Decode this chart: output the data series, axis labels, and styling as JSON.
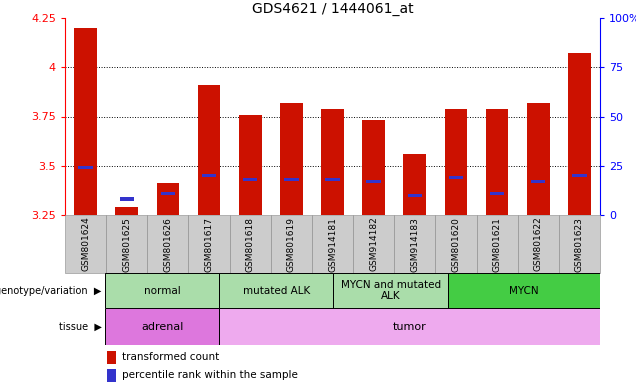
{
  "title": "GDS4621 / 1444061_at",
  "samples": [
    "GSM801624",
    "GSM801625",
    "GSM801626",
    "GSM801617",
    "GSM801618",
    "GSM801619",
    "GSM914181",
    "GSM914182",
    "GSM914183",
    "GSM801620",
    "GSM801621",
    "GSM801622",
    "GSM801623"
  ],
  "red_values": [
    4.2,
    3.29,
    3.41,
    3.91,
    3.76,
    3.82,
    3.79,
    3.73,
    3.56,
    3.79,
    3.79,
    3.82,
    4.07
  ],
  "blue_values": [
    3.49,
    3.33,
    3.36,
    3.45,
    3.43,
    3.43,
    3.43,
    3.42,
    3.35,
    3.44,
    3.36,
    3.42,
    3.45
  ],
  "ylim_min": 3.25,
  "ylim_max": 4.25,
  "yticks": [
    3.25,
    3.5,
    3.75,
    4.0,
    4.25
  ],
  "right_ytick_pct": [
    0,
    25,
    50,
    75,
    100
  ],
  "bar_color": "#cc1100",
  "blue_color": "#3333cc",
  "bar_width": 0.55,
  "blue_bar_width": 0.35,
  "blue_bar_height": 0.018,
  "grid_lines": [
    3.5,
    3.75,
    4.0
  ],
  "xtick_bg_color": "#cccccc",
  "geno_groups": [
    {
      "start": 0,
      "end": 3,
      "label": "normal",
      "color": "#aaddaa"
    },
    {
      "start": 3,
      "end": 6,
      "label": "mutated ALK",
      "color": "#aaddaa"
    },
    {
      "start": 6,
      "end": 9,
      "label": "MYCN and mutated\nALK",
      "color": "#aaddaa"
    },
    {
      "start": 9,
      "end": 13,
      "label": "MYCN",
      "color": "#44cc44"
    }
  ],
  "tissue_groups": [
    {
      "start": 0,
      "end": 3,
      "label": "adrenal",
      "color": "#dd77dd"
    },
    {
      "start": 3,
      "end": 13,
      "label": "tumor",
      "color": "#eeaaee"
    }
  ],
  "legend": [
    {
      "color": "#cc1100",
      "label": "transformed count"
    },
    {
      "color": "#3333cc",
      "label": "percentile rank within the sample"
    }
  ],
  "geno_label": "genotype/variation",
  "tissue_label": "tissue"
}
